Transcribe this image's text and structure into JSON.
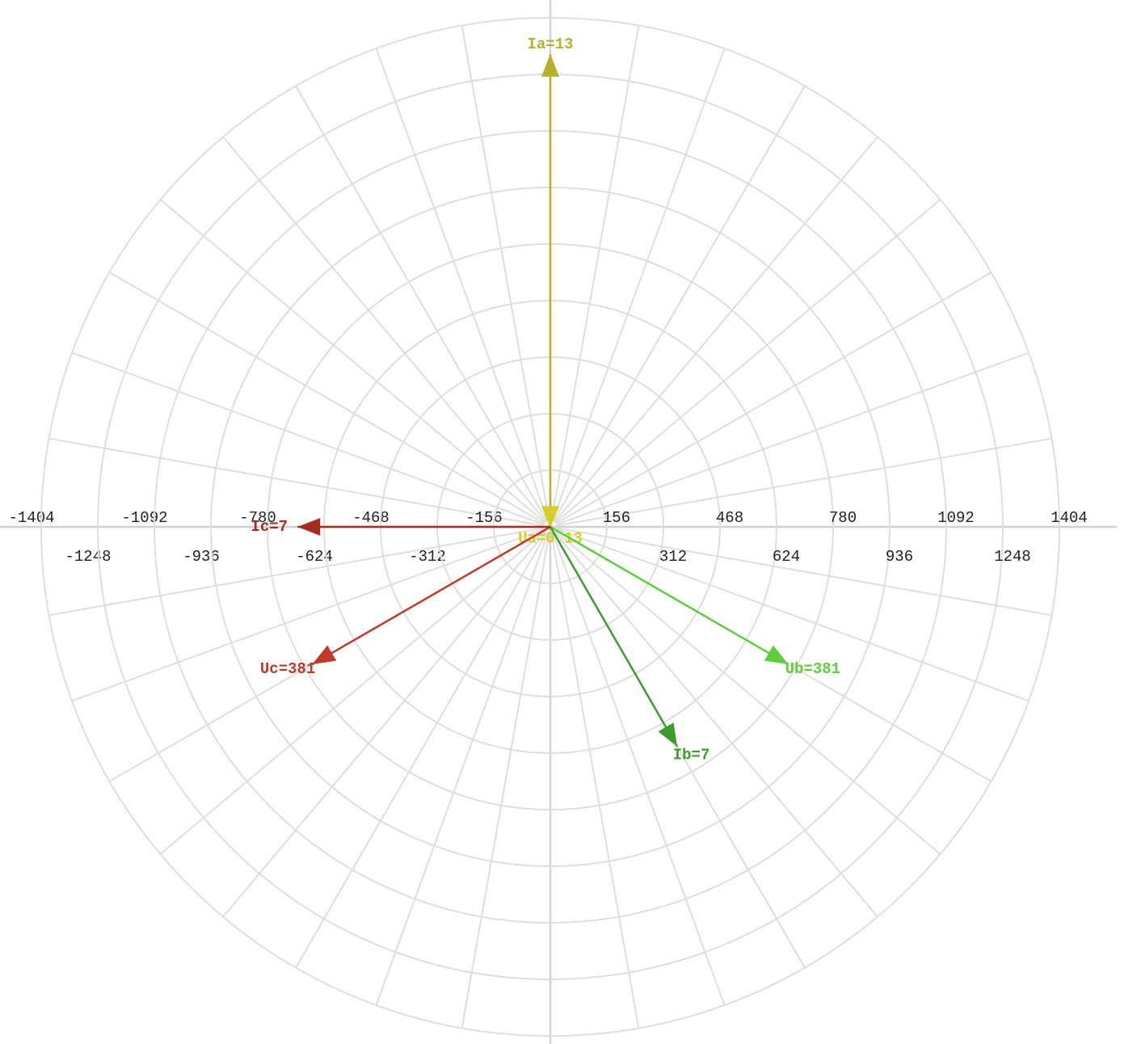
{
  "chart_data": {
    "type": "phasor",
    "rlim": [
      0,
      1404
    ],
    "xticks": [
      -1404,
      -1248,
      -1092,
      -936,
      -780,
      -624,
      -468,
      -312,
      -156,
      156,
      312,
      468,
      624,
      780,
      936,
      1092,
      1248,
      1404
    ],
    "radial_grid_deg": 10,
    "grid": true,
    "series": [
      {
        "label": "Ia=13",
        "color": "#b5b02e",
        "angle": 90,
        "length": 1304
      },
      {
        "label": "Ua=0.13",
        "color": "#d6cf2a",
        "angle": -90,
        "length": 5
      },
      {
        "label": "Ub=381",
        "color": "#5ccf3a",
        "angle": -30,
        "length": 758
      },
      {
        "label": "Ib=7",
        "color": "#3a9e2a",
        "angle": -60,
        "length": 700
      },
      {
        "label": "Uc=381",
        "color": "#c0392b",
        "angle": -150,
        "length": 758
      },
      {
        "label": "Ic=7",
        "color": "#a52a1f",
        "angle": 180,
        "length": 697
      }
    ]
  }
}
